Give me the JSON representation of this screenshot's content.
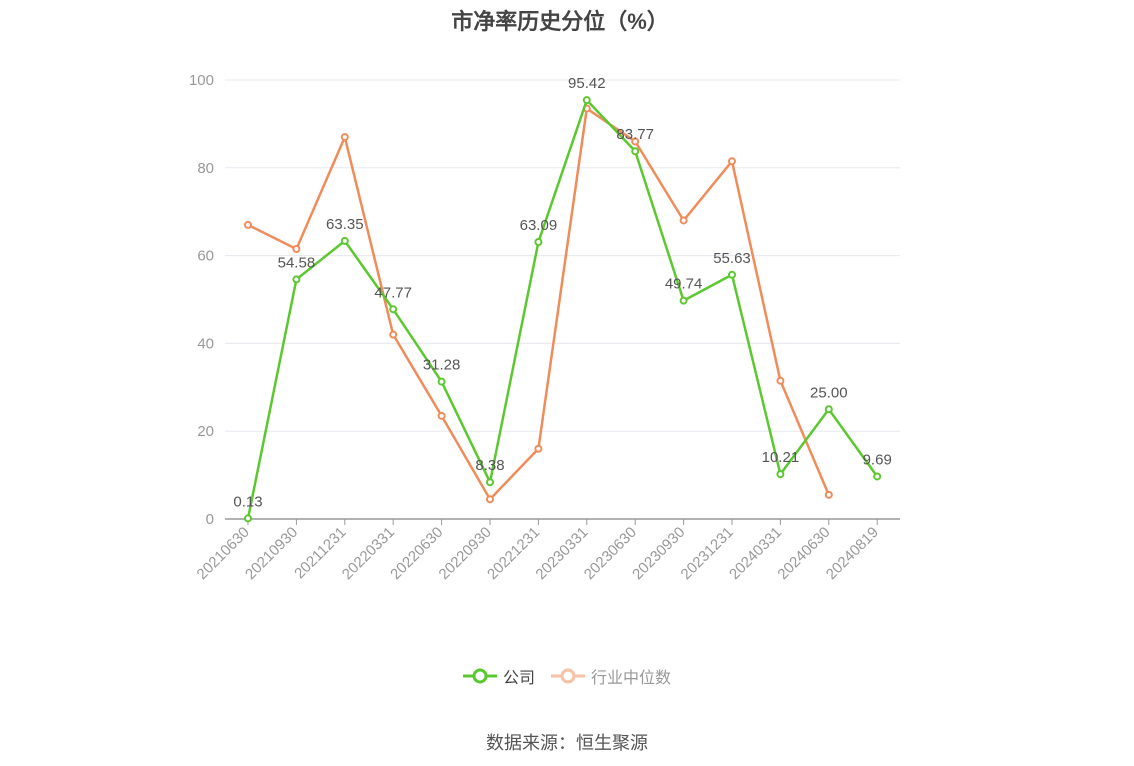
{
  "chart_data": {
    "type": "line",
    "title": "市净率历史分位（%）",
    "categories": [
      "20210630",
      "20210930",
      "20211231",
      "20220331",
      "20220630",
      "20220930",
      "20221231",
      "20230331",
      "20230630",
      "20230930",
      "20231231",
      "20240331",
      "20240630",
      "20240819"
    ],
    "ylim": [
      0,
      100
    ],
    "yticks": [
      0,
      20,
      40,
      60,
      80,
      100
    ],
    "grid": true,
    "legend_position": "bottom",
    "series": [
      {
        "name": "公司",
        "color": "#5cc830",
        "values": [
          0.13,
          54.58,
          63.35,
          47.77,
          31.28,
          8.38,
          63.09,
          95.42,
          83.77,
          49.74,
          55.63,
          10.21,
          25.0,
          9.69
        ],
        "labels": [
          "0.13",
          "54.58",
          "63.35",
          "47.77",
          "31.28",
          "8.38",
          "63.09",
          "95.42",
          "83.77",
          "49.74",
          "55.63",
          "10.21",
          "25.00",
          "9.69"
        ]
      },
      {
        "name": "行业中位数",
        "color": "#f08c5a",
        "values": [
          67.0,
          61.5,
          87.0,
          42.0,
          23.5,
          4.5,
          16.0,
          93.5,
          86.0,
          68.0,
          81.5,
          31.5,
          5.5,
          null
        ]
      }
    ]
  },
  "source": "数据来源：恒生聚源"
}
